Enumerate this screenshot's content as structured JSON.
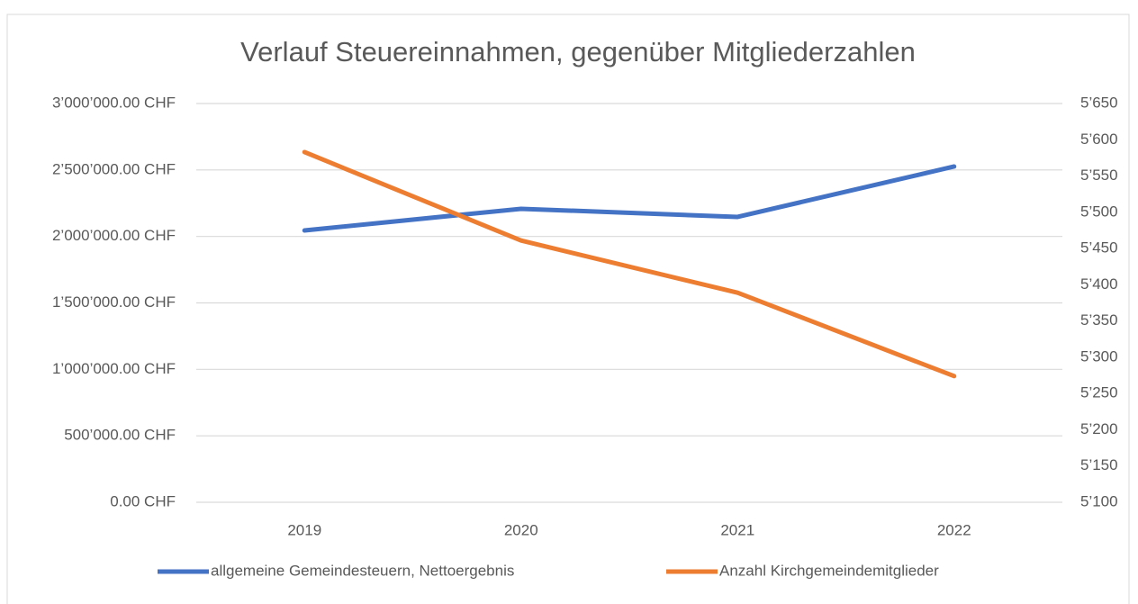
{
  "chart_data": {
    "type": "line",
    "title": "Verlauf Steuereinnahmen, gegenüber Mitgliederzahlen",
    "categories": [
      "2019",
      "2020",
      "2021",
      "2022"
    ],
    "series": [
      {
        "name": "allgemeine Gemeindesteuern, Nettoergebnis",
        "color": "#4472c4",
        "values": [
          2045000,
          2208000,
          2147000,
          2526000
        ]
      },
      {
        "name": "Anzahl Kirchgemeindemitglieder",
        "color": "#ed7d31",
        "axis": "y2",
        "values": [
          5583,
          5461,
          5389,
          5274
        ]
      }
    ],
    "ylim": [
      0,
      3000000
    ],
    "yticks": [
      {
        "value": 0,
        "label": "0.00 CHF"
      },
      {
        "value": 500000,
        "label": "500’000.00 CHF"
      },
      {
        "value": 1000000,
        "label": "1’000’000.00 CHF"
      },
      {
        "value": 1500000,
        "label": "1’500’000.00 CHF"
      },
      {
        "value": 2000000,
        "label": "2’000’000.00 CHF"
      },
      {
        "value": 2500000,
        "label": "2’500’000.00 CHF"
      },
      {
        "value": 3000000,
        "label": "3’000’000.00 CHF"
      }
    ],
    "y2lim": [
      5100,
      5650
    ],
    "y2ticks": [
      {
        "value": 5100,
        "label": "5’100"
      },
      {
        "value": 5150,
        "label": "5’150"
      },
      {
        "value": 5200,
        "label": "5’200"
      },
      {
        "value": 5250,
        "label": "5’250"
      },
      {
        "value": 5300,
        "label": "5’300"
      },
      {
        "value": 5350,
        "label": "5’350"
      },
      {
        "value": 5400,
        "label": "5’400"
      },
      {
        "value": 5450,
        "label": "5’450"
      },
      {
        "value": 5500,
        "label": "5’500"
      },
      {
        "value": 5550,
        "label": "5’550"
      },
      {
        "value": 5600,
        "label": "5’600"
      },
      {
        "value": 5650,
        "label": "5’650"
      }
    ],
    "grid": true,
    "legend": "bottom"
  }
}
